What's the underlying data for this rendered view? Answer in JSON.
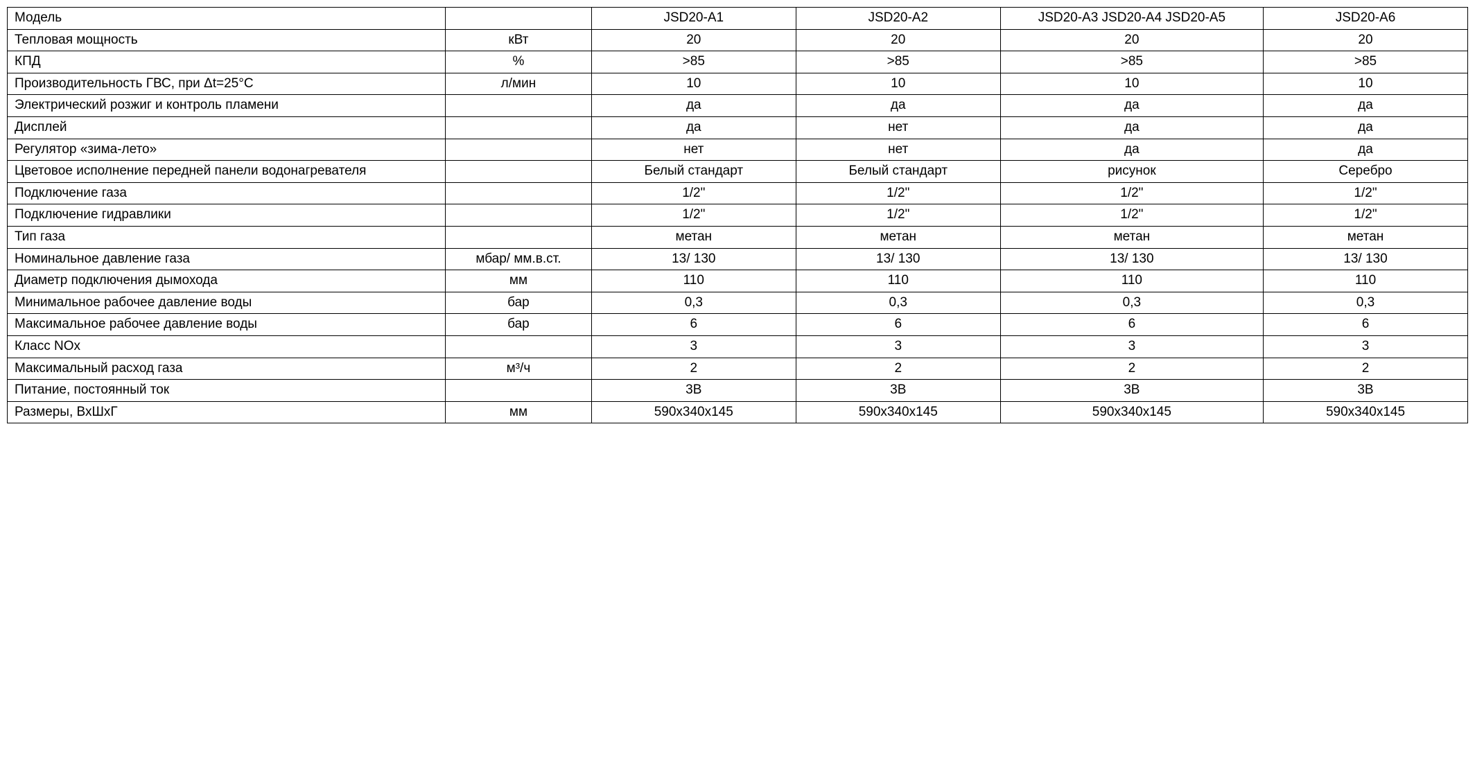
{
  "table": {
    "border_color": "#000000",
    "background_color": "#ffffff",
    "text_color": "#000000",
    "font_family": "Verdana",
    "font_size_pt": 14,
    "column_widths_pct": [
      30,
      10,
      14,
      14,
      18,
      14
    ],
    "column_align": [
      "left",
      "center",
      "center",
      "center",
      "center",
      "center"
    ],
    "header": {
      "param_label": "Модель",
      "unit_label": "",
      "models": [
        "JSD20-A1",
        "JSD20-A2",
        "JSD20-A3 JSD20-A4 JSD20-A5",
        "JSD20-A6"
      ]
    },
    "rows": [
      {
        "param": "Тепловая мощность",
        "unit": "кВт",
        "v": [
          "20",
          "20",
          "20",
          "20"
        ]
      },
      {
        "param": "КПД",
        "unit": "%",
        "v": [
          ">85",
          ">85",
          ">85",
          ">85"
        ]
      },
      {
        "param": "Производительность ГВС, при Δt=25°C",
        "unit": "л/мин",
        "v": [
          "10",
          "10",
          "10",
          "10"
        ]
      },
      {
        "param": "Электрический розжиг и контроль пламени",
        "unit": "",
        "v": [
          "да",
          "да",
          "да",
          "да"
        ]
      },
      {
        "param": "Дисплей",
        "unit": "",
        "v": [
          "да",
          "нет",
          "да",
          "да"
        ]
      },
      {
        "param": "Регулятор «зима-лето»",
        "unit": "",
        "v": [
          "нет",
          "нет",
          "да",
          "да"
        ]
      },
      {
        "param": "Цветовое исполнение передней панели водонагревателя",
        "unit": "",
        "v": [
          "Белый стандарт",
          "Белый стандарт",
          "рисунок",
          "Серебро"
        ]
      },
      {
        "param": "Подключение газа",
        "unit": "",
        "v": [
          "1/2\"",
          "1/2\"",
          "1/2\"",
          "1/2\""
        ]
      },
      {
        "param": "Подключение гидравлики",
        "unit": "",
        "v": [
          "1/2\"",
          "1/2\"",
          "1/2\"",
          "1/2\""
        ]
      },
      {
        "param": "Тип газа",
        "unit": "",
        "v": [
          "метан",
          "метан",
          "метан",
          "метан"
        ]
      },
      {
        "param": "Номинальное давление газа",
        "unit": "мбар/ мм.в.ст.",
        "v": [
          "13/ 130",
          "13/ 130",
          "13/ 130",
          "13/ 130"
        ]
      },
      {
        "param": "Диаметр подключения дымохода",
        "unit": "мм",
        "v": [
          "110",
          "110",
          "110",
          "110"
        ]
      },
      {
        "param": "Минимальное рабочее давление воды",
        "unit": "бар",
        "v": [
          "0,3",
          "0,3",
          "0,3",
          "0,3"
        ]
      },
      {
        "param": "Максимальное рабочее давление воды",
        "unit": "бар",
        "v": [
          "6",
          "6",
          "6",
          "6"
        ]
      },
      {
        "param": "Класс NOx",
        "unit": "",
        "v": [
          "3",
          "3",
          "3",
          "3"
        ]
      },
      {
        "param": "Максимальный расход газа",
        "unit": "м³/ч",
        "v": [
          "2",
          "2",
          "2",
          "2"
        ]
      },
      {
        "param": "Питание, постоянный ток",
        "unit": "",
        "v": [
          "3В",
          "3В",
          "3В",
          "3В"
        ]
      },
      {
        "param": "Размеры, ВхШхГ",
        "unit": "мм",
        "v": [
          "590х340х145",
          "590х340х145",
          "590х340х145",
          "590х340х145"
        ]
      }
    ]
  }
}
